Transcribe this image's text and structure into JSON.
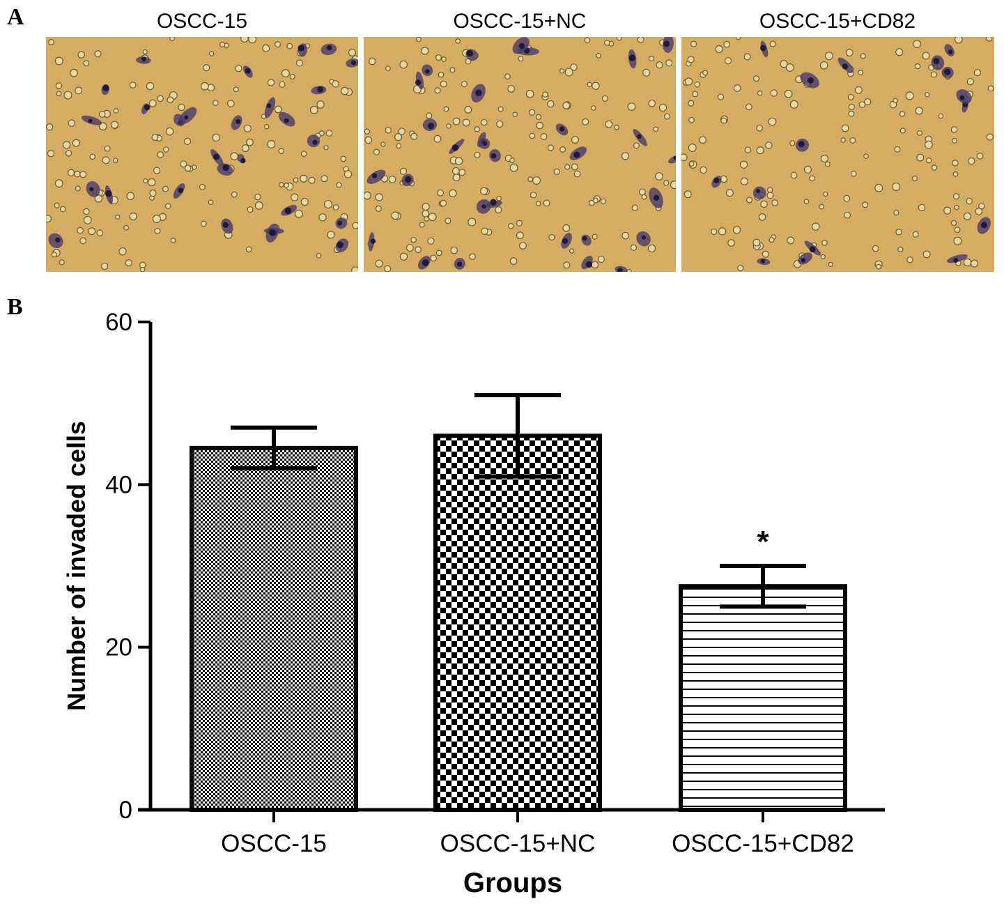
{
  "panel_a": {
    "letter": "A",
    "images": [
      {
        "title": "OSCC-15"
      },
      {
        "title": "OSCC-15+NC"
      },
      {
        "title": "OSCC-15+CD82"
      }
    ]
  },
  "panel_b": {
    "letter": "B"
  },
  "colors": {
    "stain_background": "#d4ad62",
    "stained_cell": "#4a3a6a",
    "unstained_cell": "#e8d8a0",
    "bar_edge": "#000000"
  },
  "chart_data": {
    "type": "bar",
    "categories": [
      "OSCC-15",
      "OSCC-15+NC",
      "OSCC-15+CD82"
    ],
    "values": [
      44.5,
      46,
      27.5
    ],
    "errors": [
      2.5,
      5,
      2.5
    ],
    "annotations": [
      "",
      "",
      "*"
    ],
    "fill_patterns": [
      "fine-dots",
      "checkerboard",
      "horizontal-lines"
    ],
    "xlabel": "Groups",
    "ylabel": "Number of invaded cells",
    "ylim": [
      0,
      60
    ],
    "yticks": [
      0,
      20,
      40,
      60
    ],
    "grid": false
  }
}
